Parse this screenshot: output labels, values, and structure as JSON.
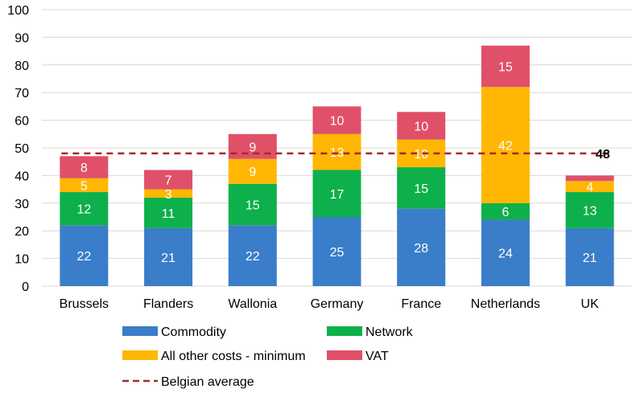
{
  "chart_data": {
    "type": "bar",
    "stacked": true,
    "categories": [
      "Brussels",
      "Flanders",
      "Wallonia",
      "Germany",
      "France",
      "Netherlands",
      "UK"
    ],
    "series": [
      {
        "name": "Commodity",
        "color": "#3A7DC9",
        "values": [
          22,
          21,
          22,
          25,
          28,
          24,
          21
        ],
        "labels": [
          "22",
          "21",
          "22",
          "25",
          "28",
          "24",
          "21"
        ]
      },
      {
        "name": "Network",
        "color": "#0DB04B",
        "values": [
          12,
          11,
          15,
          17,
          15,
          6,
          13
        ],
        "labels": [
          "12",
          "11",
          "15",
          "17",
          "15",
          "6",
          "13"
        ]
      },
      {
        "name": "All other costs - minimum",
        "color": "#FFB703",
        "values": [
          5,
          3,
          9,
          13,
          10,
          42,
          4
        ],
        "labels": [
          "5",
          "3",
          "9",
          "13",
          "10",
          "42",
          "4"
        ]
      },
      {
        "name": "VAT",
        "color": "#E05068",
        "values": [
          8,
          7,
          9,
          10,
          10,
          15,
          2
        ],
        "labels": [
          "8",
          "7",
          "9",
          "10",
          "10",
          "15",
          ""
        ]
      }
    ],
    "reference_line": {
      "name": "Belgian average",
      "value": 48,
      "label": "48",
      "color": "#A52A2A",
      "style": "dashed"
    },
    "ylim": [
      0,
      100
    ],
    "yticks": [
      "0",
      "10",
      "20",
      "30",
      "40",
      "50",
      "60",
      "70",
      "80",
      "90",
      "100"
    ],
    "grid": true,
    "legend_position": "bottom"
  }
}
